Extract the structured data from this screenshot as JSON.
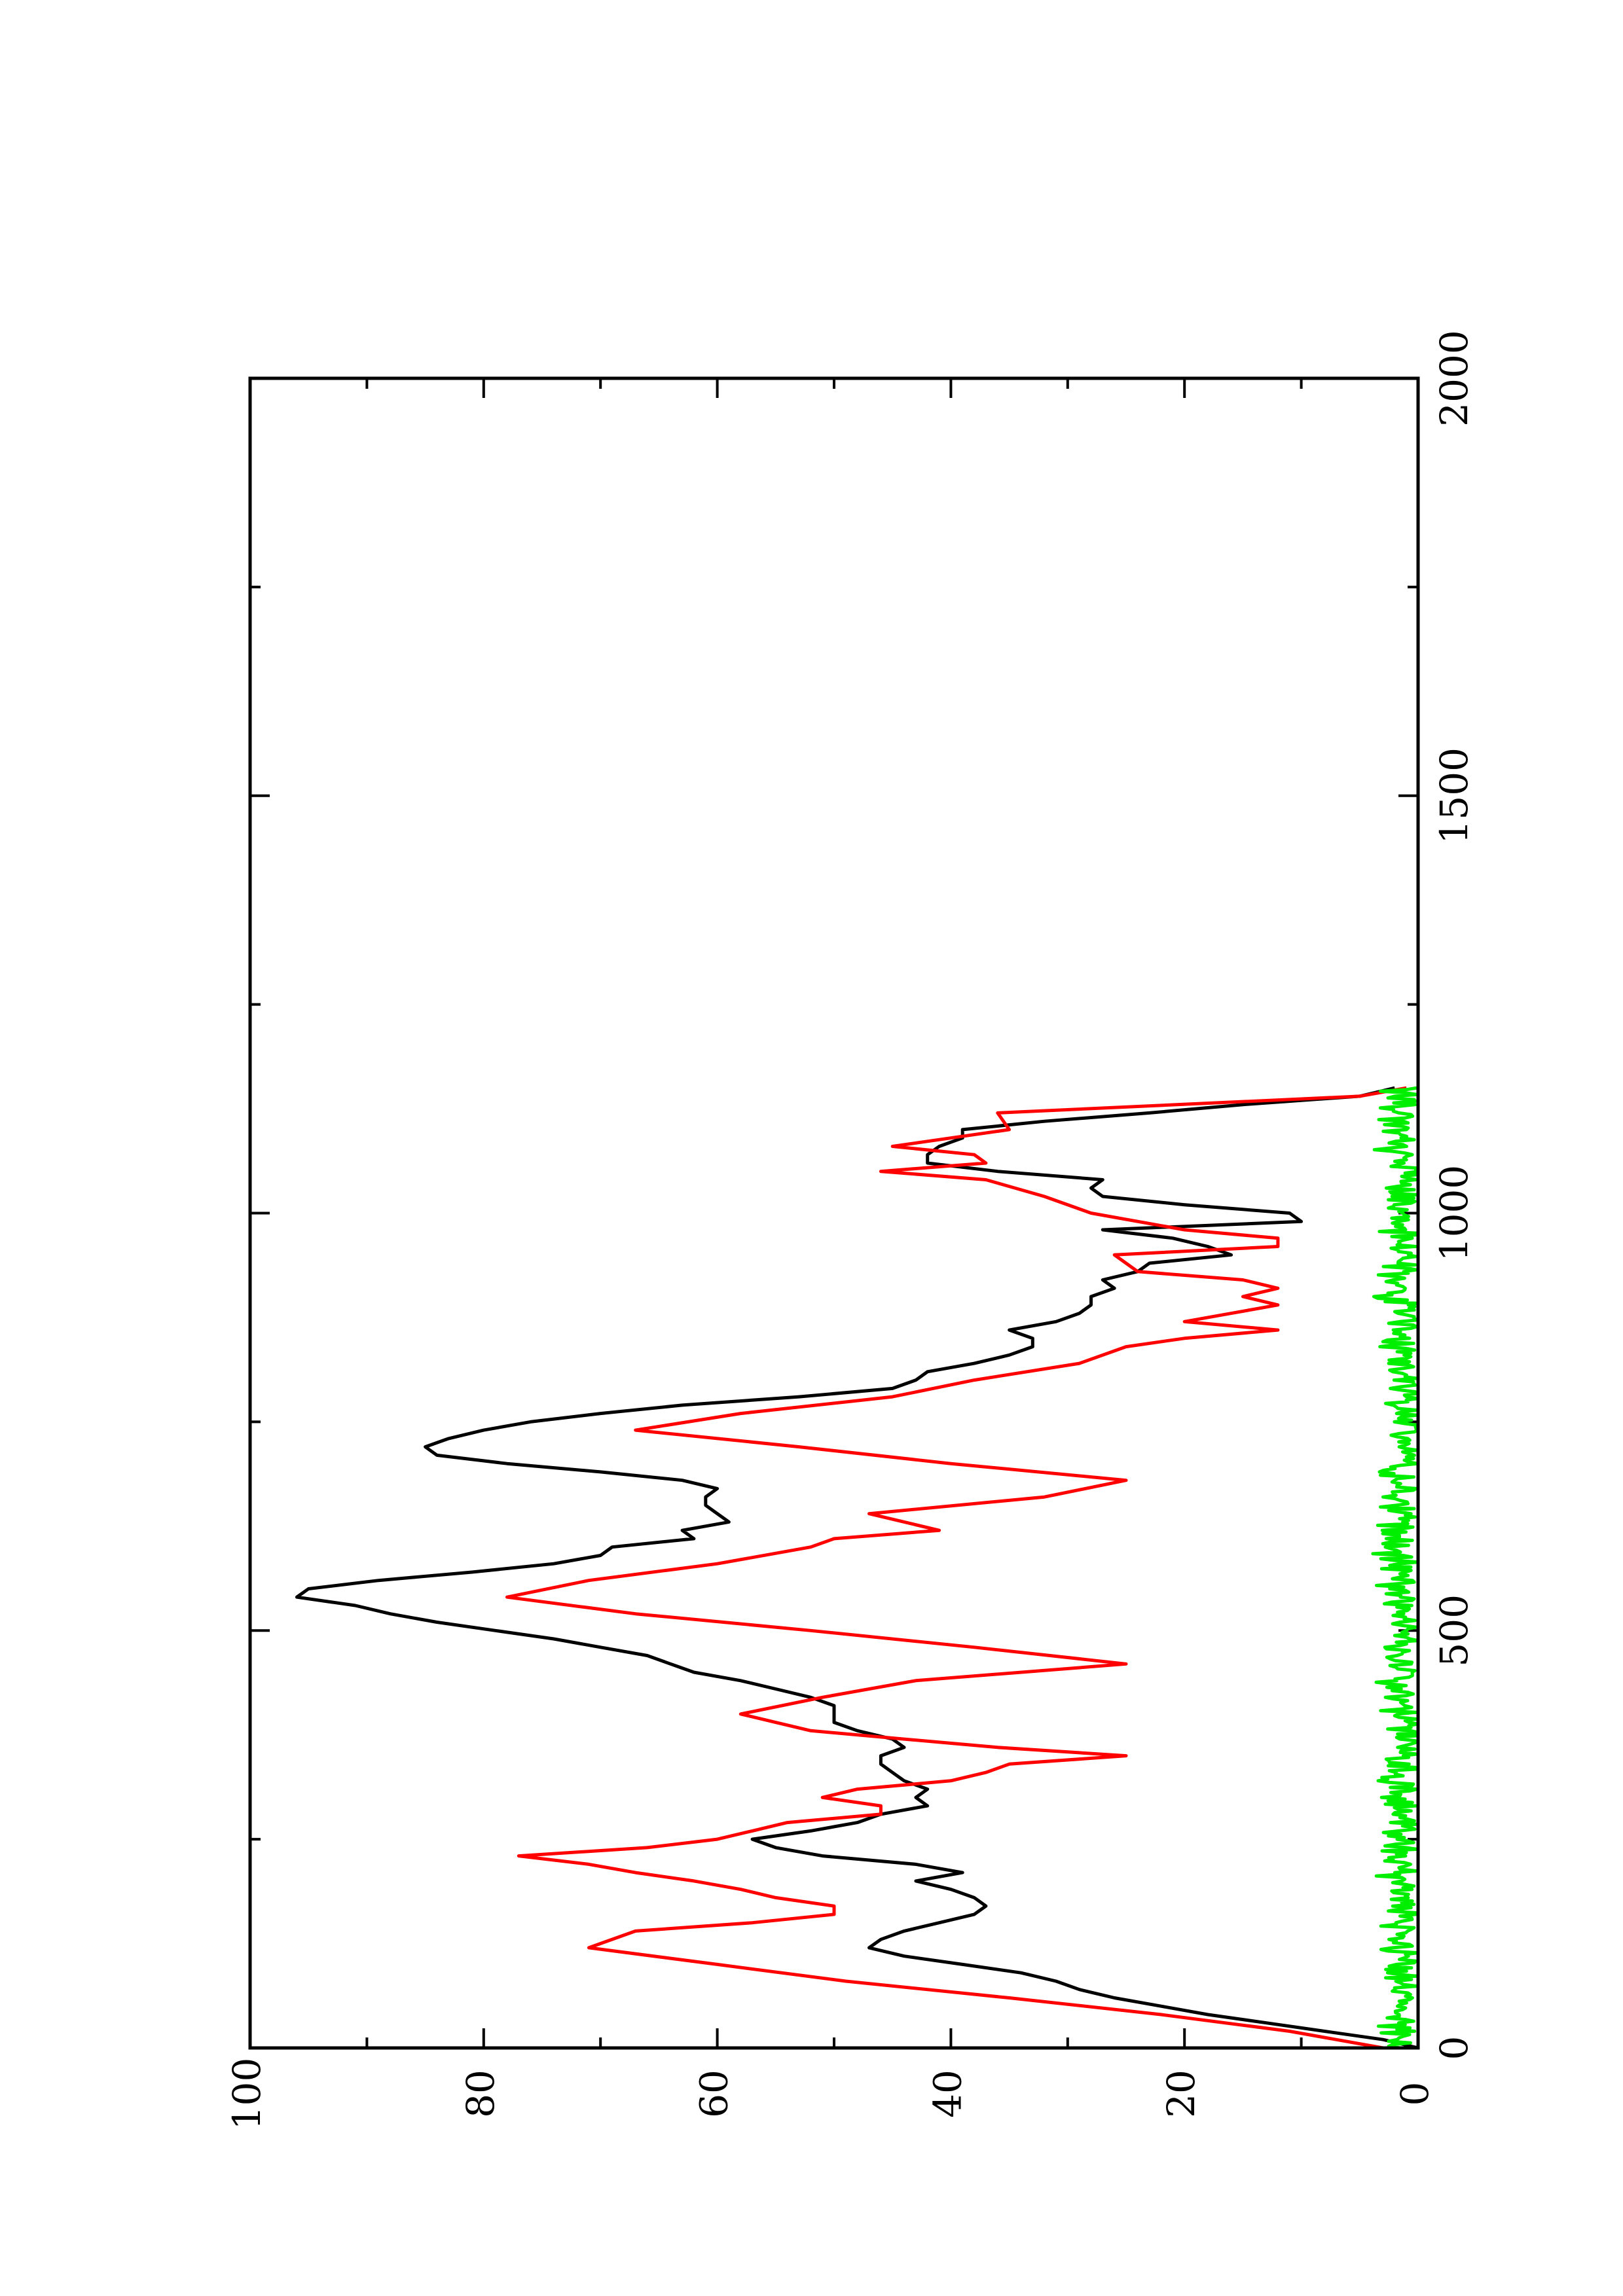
{
  "chart_data": {
    "type": "line",
    "orientation": "rotated-90-ccw",
    "title": "",
    "xlabel": "",
    "ylabel": "",
    "xlim": [
      0,
      2000
    ],
    "ylim": [
      0,
      100
    ],
    "grid": false,
    "x_ticks": [
      0,
      500,
      1000,
      1500,
      2000
    ],
    "x_tick_labels": [
      "0",
      "500",
      "1000",
      "1500",
      "2000"
    ],
    "x_minor_ticks": [
      250,
      750,
      1250,
      1750
    ],
    "y_ticks": [
      0,
      20,
      40,
      60,
      80,
      100
    ],
    "y_tick_labels": [
      "0",
      "20",
      "40",
      "60",
      "80",
      "100"
    ],
    "y_minor_ticks": [
      10,
      30,
      50,
      70,
      90
    ],
    "series": [
      {
        "color": "#000000",
        "x": [
          0,
          10,
          20,
          30,
          40,
          50,
          60,
          70,
          80,
          90,
          100,
          110,
          120,
          130,
          140,
          150,
          160,
          170,
          180,
          190,
          200,
          210,
          220,
          230,
          240,
          250,
          260,
          270,
          280,
          290,
          300,
          310,
          320,
          330,
          340,
          350,
          360,
          370,
          380,
          390,
          400,
          410,
          420,
          430,
          440,
          450,
          460,
          470,
          480,
          490,
          500,
          510,
          520,
          530,
          540,
          550,
          560,
          570,
          580,
          590,
          600,
          610,
          620,
          630,
          640,
          650,
          660,
          670,
          680,
          690,
          700,
          710,
          720,
          730,
          740,
          750,
          760,
          770,
          780,
          790,
          800,
          810,
          820,
          830,
          840,
          850,
          860,
          870,
          880,
          890,
          900,
          910,
          920,
          930,
          940,
          950,
          960,
          970,
          980,
          990,
          1000,
          1010,
          1020,
          1030,
          1040,
          1050,
          1060,
          1070,
          1080,
          1090,
          1100,
          1110,
          1120,
          1130,
          1140,
          1150
        ],
        "y": [
          0,
          3,
          8,
          13,
          18,
          22,
          26,
          29,
          31,
          34,
          39,
          44,
          47,
          46,
          44,
          41,
          38,
          37,
          38,
          40,
          43,
          39,
          43,
          51,
          55,
          57,
          52,
          48,
          46,
          42,
          43,
          42,
          44,
          45,
          46,
          46,
          44,
          45,
          48,
          50,
          50,
          50,
          52,
          55,
          58,
          62,
          64,
          66,
          70,
          74,
          79,
          84,
          88,
          91,
          96,
          95,
          89,
          81,
          74,
          70,
          69,
          62,
          63,
          59,
          60,
          61,
          61,
          60,
          63,
          70,
          78,
          84,
          85,
          83,
          80,
          76,
          70,
          63,
          53,
          45,
          43,
          42,
          38,
          35,
          33,
          33,
          35,
          31,
          29,
          28,
          28,
          26,
          27,
          24,
          23,
          16,
          18,
          21,
          27,
          10,
          11,
          20,
          27,
          28,
          27,
          36,
          42,
          42,
          41,
          39,
          39,
          32,
          23,
          15,
          5,
          2
        ]
      },
      {
        "color": "#ff0000",
        "x": [
          0,
          20,
          40,
          60,
          80,
          100,
          120,
          140,
          150,
          160,
          170,
          180,
          190,
          200,
          210,
          220,
          230,
          240,
          250,
          260,
          270,
          280,
          290,
          300,
          310,
          320,
          330,
          340,
          350,
          360,
          370,
          380,
          390,
          400,
          420,
          440,
          460,
          480,
          500,
          520,
          540,
          560,
          580,
          600,
          610,
          620,
          640,
          660,
          680,
          700,
          720,
          740,
          760,
          780,
          800,
          820,
          840,
          850,
          860,
          870,
          880,
          890,
          900,
          910,
          920,
          930,
          950,
          960,
          970,
          980,
          1000,
          1020,
          1040,
          1050,
          1060,
          1070,
          1080,
          1100,
          1120,
          1140,
          1150
        ],
        "y": [
          3,
          11,
          22,
          35,
          49,
          60,
          71,
          67,
          57,
          50,
          50,
          55,
          58,
          62,
          67,
          71,
          77,
          66,
          60,
          57,
          54,
          46,
          46,
          51,
          48,
          40,
          37,
          35,
          25,
          36,
          44,
          52,
          55,
          58,
          51,
          43,
          25,
          38,
          52,
          67,
          78,
          71,
          60,
          52,
          50,
          41,
          47,
          32,
          25,
          40,
          53,
          67,
          58,
          45,
          38,
          29,
          25,
          20,
          12,
          20,
          16,
          12,
          15,
          12,
          15,
          24,
          26,
          12,
          12,
          20,
          28,
          32,
          37,
          46,
          37,
          38,
          45,
          35,
          36,
          5,
          1
        ]
      },
      {
        "color": "#00ee00",
        "style": "noise",
        "x_max": 1150,
        "y_max": 4
      }
    ]
  }
}
